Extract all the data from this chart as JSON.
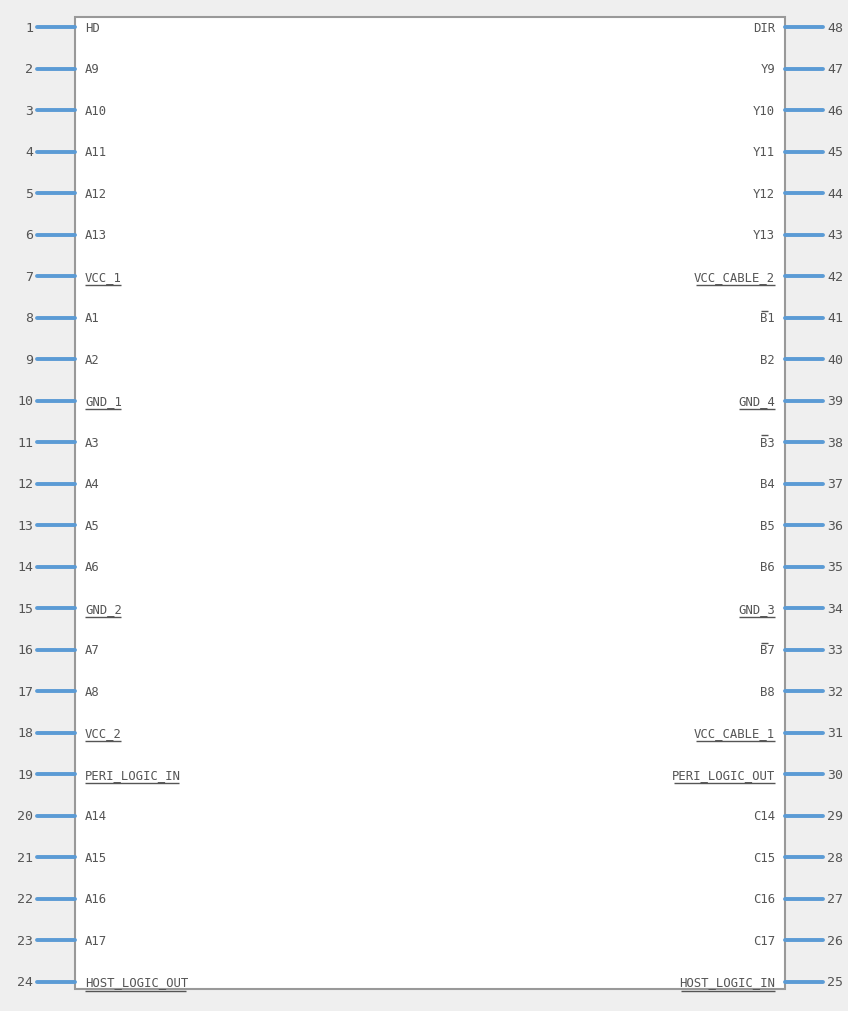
{
  "background_color": "#efefef",
  "box_color": "#ffffff",
  "box_edge_color": "#999999",
  "pin_line_color": "#5b9bd5",
  "text_color": "#555555",
  "left_pins": [
    {
      "num": 1,
      "name": "HD",
      "overline": false
    },
    {
      "num": 2,
      "name": "A9",
      "overline": false
    },
    {
      "num": 3,
      "name": "A10",
      "overline": false
    },
    {
      "num": 4,
      "name": "A11",
      "overline": false
    },
    {
      "num": 5,
      "name": "A12",
      "overline": false
    },
    {
      "num": 6,
      "name": "A13",
      "overline": false
    },
    {
      "num": 7,
      "name": "VCC_1",
      "overline": true
    },
    {
      "num": 8,
      "name": "A1",
      "overline": false
    },
    {
      "num": 9,
      "name": "A2",
      "overline": false
    },
    {
      "num": 10,
      "name": "GND_1",
      "overline": true
    },
    {
      "num": 11,
      "name": "A3",
      "overline": false
    },
    {
      "num": 12,
      "name": "A4",
      "overline": false
    },
    {
      "num": 13,
      "name": "A5",
      "overline": false
    },
    {
      "num": 14,
      "name": "A6",
      "overline": false
    },
    {
      "num": 15,
      "name": "GND_2",
      "overline": true
    },
    {
      "num": 16,
      "name": "A7",
      "overline": false
    },
    {
      "num": 17,
      "name": "A8",
      "overline": false
    },
    {
      "num": 18,
      "name": "VCC_2",
      "overline": true
    },
    {
      "num": 19,
      "name": "PERI_LOGIC_IN",
      "overline": true
    },
    {
      "num": 20,
      "name": "A14",
      "overline": false
    },
    {
      "num": 21,
      "name": "A15",
      "overline": false
    },
    {
      "num": 22,
      "name": "A16",
      "overline": false
    },
    {
      "num": 23,
      "name": "A17",
      "overline": false
    },
    {
      "num": 24,
      "name": "HOST_LOGIC_OUT",
      "overline": true
    }
  ],
  "right_pins": [
    {
      "num": 48,
      "name": "DIR",
      "overline": false,
      "bar_char": ""
    },
    {
      "num": 47,
      "name": "Y9",
      "overline": false,
      "bar_char": ""
    },
    {
      "num": 46,
      "name": "Y10",
      "overline": false,
      "bar_char": ""
    },
    {
      "num": 45,
      "name": "Y11",
      "overline": false,
      "bar_char": ""
    },
    {
      "num": 44,
      "name": "Y12",
      "overline": false,
      "bar_char": ""
    },
    {
      "num": 43,
      "name": "Y13",
      "overline": false,
      "bar_char": ""
    },
    {
      "num": 42,
      "name": "VCC_CABLE_2",
      "overline": true,
      "bar_char": ""
    },
    {
      "num": 41,
      "name": "B1",
      "overline": false,
      "bar_char": "B"
    },
    {
      "num": 40,
      "name": "B2",
      "overline": false,
      "bar_char": ""
    },
    {
      "num": 39,
      "name": "GND_4",
      "overline": true,
      "bar_char": ""
    },
    {
      "num": 38,
      "name": "B3",
      "overline": false,
      "bar_char": "B"
    },
    {
      "num": 37,
      "name": "B4",
      "overline": false,
      "bar_char": ""
    },
    {
      "num": 36,
      "name": "B5",
      "overline": false,
      "bar_char": ""
    },
    {
      "num": 35,
      "name": "B6",
      "overline": false,
      "bar_char": ""
    },
    {
      "num": 34,
      "name": "GND_3",
      "overline": true,
      "bar_char": ""
    },
    {
      "num": 33,
      "name": "B7",
      "overline": false,
      "bar_char": "B"
    },
    {
      "num": 32,
      "name": "B8",
      "overline": false,
      "bar_char": ""
    },
    {
      "num": 31,
      "name": "VCC_CABLE_1",
      "overline": true,
      "bar_char": ""
    },
    {
      "num": 30,
      "name": "PERI_LOGIC_OUT",
      "overline": true,
      "bar_char": ""
    },
    {
      "num": 29,
      "name": "C14",
      "overline": false,
      "bar_char": ""
    },
    {
      "num": 28,
      "name": "C15",
      "overline": false,
      "bar_char": ""
    },
    {
      "num": 27,
      "name": "C16",
      "overline": false,
      "bar_char": ""
    },
    {
      "num": 26,
      "name": "C17",
      "overline": false,
      "bar_char": ""
    },
    {
      "num": 25,
      "name": "HOST_LOGIC_IN",
      "overline": true,
      "bar_char": ""
    }
  ]
}
